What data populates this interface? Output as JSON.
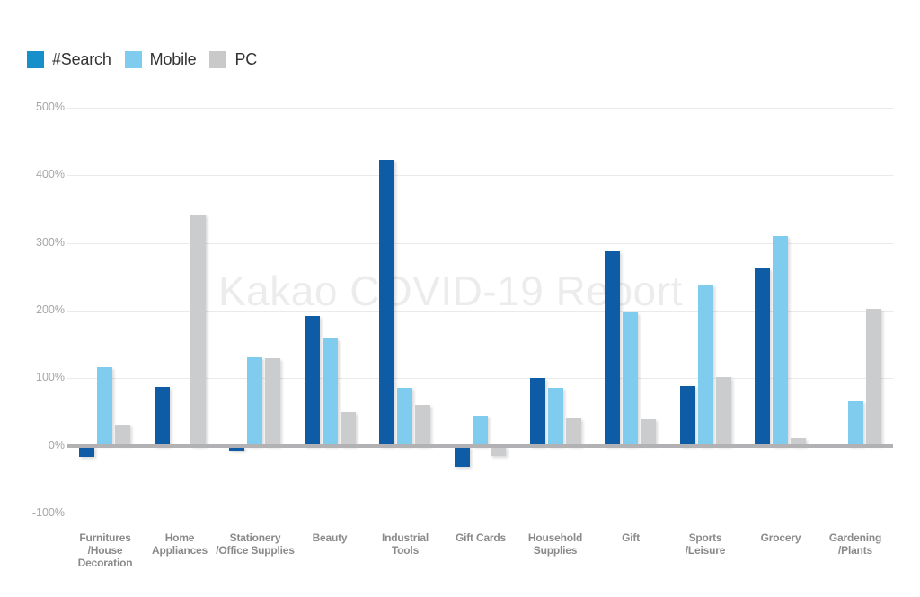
{
  "watermark": "Kakao COVID-19 Report",
  "colors": {
    "search_bar": "#0F5CA6",
    "search_legend": "#168FCA",
    "mobile": "#7FCCEE",
    "pc_bar": "#CBCCCE",
    "pc_legend": "#C9C9C9",
    "gridline": "#EAEAEA",
    "zero_line": "#B2B2B4",
    "y_tick_text": "#A6A6A6",
    "x_label_text": "#8A8A8A",
    "legend_text": "#333333"
  },
  "y_axis": {
    "tick_labels": [
      "500%",
      "400%",
      "300%",
      "200%",
      "100%",
      "0%",
      "-100%"
    ]
  },
  "chart_data": {
    "type": "bar",
    "title": "",
    "xlabel": "",
    "ylabel": "",
    "ylim": [
      -100,
      500
    ],
    "ytick_step": 100,
    "ytick_suffix": "%",
    "grid": true,
    "legend_position": "top-left",
    "watermark": "Kakao COVID-19 Report",
    "categories": [
      "Furnitures /House Decoration",
      "Home Appliances",
      "Stationery /Office Supplies",
      "Beauty",
      "Industrial Tools",
      "Gift Cards",
      "Household Supplies",
      "Gift",
      "Sports /Leisure",
      "Grocery",
      "Gardening /Plants"
    ],
    "category_lines": [
      [
        "Furnitures",
        "/House Decoration"
      ],
      [
        "Home",
        "Appliances"
      ],
      [
        "Stationery",
        "/Office Supplies"
      ],
      [
        "Beauty"
      ],
      [
        "Industrial",
        "Tools"
      ],
      [
        "Gift Cards"
      ],
      [
        "Household",
        "Supplies"
      ],
      [
        "Gift"
      ],
      [
        "Sports",
        "/Leisure"
      ],
      [
        "Grocery"
      ],
      [
        "Gardening",
        "/Plants"
      ]
    ],
    "series": [
      {
        "name": "#Search",
        "color": "#0F5CA6",
        "legend_color": "#168FCA",
        "values": [
          -16,
          87,
          -6,
          192,
          423,
          -30,
          101,
          288,
          89,
          262,
          0
        ]
      },
      {
        "name": "Mobile",
        "color": "#7FCCEE",
        "legend_color": "#7FCCEE",
        "values": [
          116,
          0,
          131,
          159,
          86,
          45,
          86,
          198,
          239,
          310,
          66
        ]
      },
      {
        "name": "PC",
        "color": "#CBCCCE",
        "legend_color": "#C9C9C9",
        "values": [
          31,
          342,
          130,
          50,
          61,
          -14,
          41,
          39,
          102,
          12,
          202
        ]
      }
    ],
    "note": "zero values render no bar but keep their slot"
  }
}
